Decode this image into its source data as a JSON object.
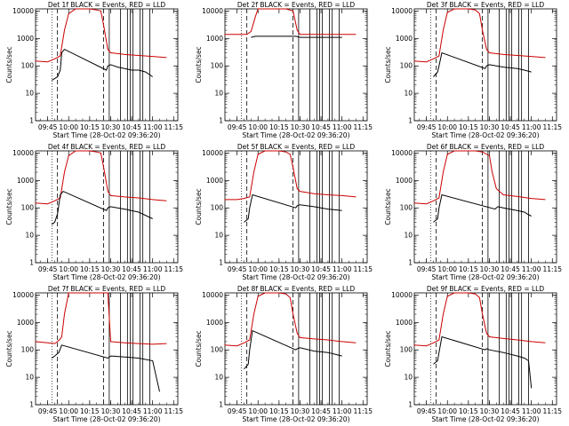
{
  "figure": {
    "xlabel": "Start Time (28-Oct-02 09:36:20)",
    "ylabel": "Counts/sec",
    "x_ticks": [
      "09:45",
      "10:00",
      "10:15",
      "10:30",
      "10:45",
      "11:00",
      "11:15"
    ],
    "y_ticks": [
      "1",
      "10",
      "100",
      "1000",
      "10000"
    ]
  },
  "colors": {
    "events": "#000000",
    "lld": "#cc0000",
    "axis": "#000000",
    "background": "#ffffff"
  },
  "chart_data": [
    {
      "type": "line",
      "title": "Det 1f BLACK = Events, RED = LLD",
      "xlabel": "Start Time (28-Oct-02 09:36:20)",
      "ylabel": "Counts/sec",
      "ylim": [
        1,
        12000
      ],
      "yscale": "log",
      "series": [
        {
          "name": "LLD",
          "color": "#cc0000",
          "x": [
            "09:36",
            "09:45",
            "09:50",
            "09:54",
            "09:57",
            "10:00",
            "10:05",
            "10:10",
            "10:15",
            "10:20",
            "10:23",
            "10:25",
            "10:28",
            "10:30",
            "10:40",
            "10:50",
            "11:00",
            "11:10"
          ],
          "values": [
            150,
            140,
            180,
            230,
            2000,
            8000,
            12000,
            12000,
            12000,
            11000,
            10000,
            3000,
            400,
            300,
            260,
            240,
            220,
            200
          ]
        },
        {
          "name": "Events",
          "color": "#000000",
          "x": [
            "09:48",
            "09:52",
            "09:54",
            "09:55",
            "09:57",
            "10:27",
            "10:28",
            "10:30",
            "10:35",
            "10:40",
            "10:45",
            "10:50",
            "10:55",
            "11:00"
          ],
          "values": [
            30,
            40,
            70,
            300,
            400,
            70,
            100,
            110,
            90,
            80,
            70,
            70,
            60,
            40
          ]
        }
      ]
    },
    {
      "type": "line",
      "title": "Det 2f BLACK = Events, RED = LLD",
      "xlabel": "Start Time (28-Oct-02 09:36:20)",
      "ylabel": "Counts/sec",
      "ylim": [
        1,
        12000
      ],
      "yscale": "log",
      "series": [
        {
          "name": "LLD",
          "color": "#cc0000",
          "x": [
            "09:36",
            "09:45",
            "09:52",
            "09:55",
            "09:58",
            "10:00",
            "10:10",
            "10:20",
            "10:25",
            "10:28",
            "10:30",
            "10:40",
            "10:50",
            "11:00",
            "11:10"
          ],
          "values": [
            1400,
            1400,
            1400,
            1800,
            6000,
            12000,
            12000,
            12000,
            10000,
            2000,
            1400,
            1400,
            1400,
            1400,
            1400
          ]
        },
        {
          "name": "Events",
          "color": "#000000",
          "x": [
            "09:55",
            "09:58",
            "10:27",
            "10:30",
            "10:40",
            "10:50",
            "11:00"
          ],
          "values": [
            1100,
            1200,
            1200,
            1100,
            1100,
            1100,
            1100
          ]
        }
      ]
    },
    {
      "type": "line",
      "title": "Det 3f BLACK = Events, RED = LLD",
      "xlabel": "Start Time (28-Oct-02 09:36:20)",
      "ylabel": "Counts/sec",
      "ylim": [
        1,
        12000
      ],
      "yscale": "log",
      "series": [
        {
          "name": "LLD",
          "color": "#cc0000",
          "x": [
            "09:36",
            "09:45",
            "09:50",
            "09:54",
            "09:57",
            "10:00",
            "10:05",
            "10:15",
            "10:20",
            "10:23",
            "10:25",
            "10:28",
            "10:30",
            "10:40",
            "10:50",
            "11:00",
            "11:10"
          ],
          "values": [
            150,
            140,
            180,
            230,
            2000,
            9000,
            12000,
            12000,
            11000,
            8000,
            2000,
            400,
            300,
            260,
            240,
            220,
            200
          ]
        },
        {
          "name": "Events",
          "color": "#000000",
          "x": [
            "09:50",
            "09:53",
            "09:54",
            "09:56",
            "10:27",
            "10:28",
            "10:30",
            "10:40",
            "10:50",
            "10:55",
            "11:00"
          ],
          "values": [
            40,
            60,
            100,
            300,
            80,
            100,
            110,
            90,
            80,
            70,
            60
          ]
        }
      ]
    },
    {
      "type": "line",
      "title": "Det 4f BLACK = Events, RED = LLD",
      "xlabel": "Start Time (28-Oct-02 09:36:20)",
      "ylabel": "Counts/sec",
      "ylim": [
        1,
        12000
      ],
      "yscale": "log",
      "series": [
        {
          "name": "LLD",
          "color": "#cc0000",
          "x": [
            "09:36",
            "09:45",
            "09:50",
            "09:54",
            "09:57",
            "10:00",
            "10:05",
            "10:10",
            "10:15",
            "10:20",
            "10:23",
            "10:25",
            "10:28",
            "10:30",
            "10:40",
            "10:50",
            "11:00",
            "11:10"
          ],
          "values": [
            150,
            140,
            180,
            230,
            2000,
            8000,
            12000,
            12000,
            12000,
            11000,
            10000,
            3000,
            400,
            280,
            250,
            230,
            200,
            180
          ]
        },
        {
          "name": "Events",
          "color": "#000000",
          "x": [
            "09:48",
            "09:50",
            "09:52",
            "09:54",
            "09:56",
            "10:27",
            "10:28",
            "10:30",
            "10:40",
            "10:50",
            "11:00"
          ],
          "values": [
            25,
            30,
            60,
            300,
            400,
            80,
            100,
            110,
            90,
            70,
            40
          ]
        }
      ]
    },
    {
      "type": "line",
      "title": "Det 5f BLACK = Events, RED = LLD",
      "xlabel": "Start Time (28-Oct-02 09:36:20)",
      "ylabel": "Counts/sec",
      "ylim": [
        1,
        12000
      ],
      "yscale": "log",
      "series": [
        {
          "name": "LLD",
          "color": "#cc0000",
          "x": [
            "09:36",
            "09:45",
            "09:50",
            "09:54",
            "09:57",
            "10:00",
            "10:05",
            "10:15",
            "10:20",
            "10:23",
            "10:25",
            "10:28",
            "10:30",
            "10:40",
            "10:50",
            "11:00",
            "11:10"
          ],
          "values": [
            200,
            200,
            220,
            250,
            2000,
            9000,
            12000,
            12000,
            11000,
            9000,
            3000,
            500,
            400,
            330,
            300,
            280,
            250
          ]
        },
        {
          "name": "Events",
          "color": "#000000",
          "x": [
            "09:50",
            "09:53",
            "09:54",
            "09:56",
            "10:27",
            "10:28",
            "10:30",
            "10:40",
            "10:50",
            "11:00"
          ],
          "values": [
            30,
            40,
            100,
            300,
            100,
            120,
            130,
            110,
            90,
            80
          ]
        }
      ]
    },
    {
      "type": "line",
      "title": "Det 6f BLACK = Events, RED = LLD",
      "xlabel": "Start Time (28-Oct-02 09:36:20)",
      "ylabel": "Counts/sec",
      "ylim": [
        1,
        12000
      ],
      "yscale": "log",
      "series": [
        {
          "name": "LLD",
          "color": "#cc0000",
          "x": [
            "09:36",
            "09:45",
            "09:50",
            "09:54",
            "09:57",
            "10:00",
            "10:05",
            "10:15",
            "10:20",
            "10:25",
            "10:30",
            "10:32",
            "10:35",
            "10:40",
            "10:50",
            "11:00",
            "11:10"
          ],
          "values": [
            150,
            140,
            180,
            230,
            2000,
            9000,
            12000,
            12000,
            12000,
            11000,
            8000,
            2000,
            500,
            300,
            260,
            220,
            200
          ]
        },
        {
          "name": "Events",
          "color": "#000000",
          "x": [
            "09:50",
            "09:53",
            "09:54",
            "09:56",
            "10:34",
            "10:36",
            "10:40",
            "10:50",
            "10:55",
            "10:57",
            "11:00"
          ],
          "values": [
            30,
            40,
            100,
            300,
            90,
            110,
            100,
            80,
            70,
            60,
            50
          ]
        }
      ]
    },
    {
      "type": "line",
      "title": "Det 7f BLACK = Events, RED = LLD",
      "xlabel": "Start Time (28-Oct-02 09:36:20)",
      "ylabel": "Counts/sec",
      "ylim": [
        1,
        12000
      ],
      "yscale": "log",
      "series": [
        {
          "name": "LLD",
          "color": "#cc0000",
          "x": [
            "09:36",
            "09:45",
            "09:50",
            "09:53",
            "09:55",
            "09:57",
            "10:00",
            "10:20",
            "10:28",
            "10:30",
            "10:40",
            "10:50",
            "11:00",
            "11:10"
          ],
          "values": [
            200,
            180,
            170,
            220,
            300,
            2000,
            12000,
            12000,
            12000,
            200,
            180,
            170,
            160,
            170
          ]
        },
        {
          "name": "Events",
          "color": "#000000",
          "x": [
            "09:48",
            "09:50",
            "09:53",
            "09:55",
            "10:28",
            "10:30",
            "10:40",
            "10:50",
            "11:00",
            "11:05"
          ],
          "values": [
            50,
            60,
            80,
            150,
            50,
            60,
            55,
            50,
            40,
            3
          ]
        }
      ]
    },
    {
      "type": "line",
      "title": "Det 8f BLACK = Events, RED = LLD",
      "xlabel": "Start Time (28-Oct-02 09:36:20)",
      "ylabel": "Counts/sec",
      "ylim": [
        1,
        12000
      ],
      "yscale": "log",
      "series": [
        {
          "name": "LLD",
          "color": "#cc0000",
          "x": [
            "09:36",
            "09:45",
            "09:50",
            "09:54",
            "09:57",
            "10:00",
            "10:05",
            "10:15",
            "10:20",
            "10:23",
            "10:25",
            "10:28",
            "10:30",
            "10:40",
            "10:50",
            "11:00",
            "11:10"
          ],
          "values": [
            150,
            140,
            180,
            230,
            2000,
            9000,
            12000,
            12000,
            11000,
            8000,
            2000,
            400,
            280,
            250,
            230,
            200,
            180
          ]
        },
        {
          "name": "Events",
          "color": "#000000",
          "x": [
            "09:50",
            "09:53",
            "09:54",
            "09:56",
            "10:27",
            "10:28",
            "10:30",
            "10:40",
            "10:50",
            "11:00"
          ],
          "values": [
            20,
            30,
            100,
            500,
            100,
            110,
            120,
            90,
            80,
            60
          ]
        }
      ]
    },
    {
      "type": "line",
      "title": "Det 9f BLACK = Events, RED = LLD",
      "xlabel": "Start Time (28-Oct-02 09:36:20)",
      "ylabel": "Counts/sec",
      "ylim": [
        1,
        12000
      ],
      "yscale": "log",
      "series": [
        {
          "name": "LLD",
          "color": "#cc0000",
          "x": [
            "09:36",
            "09:45",
            "09:50",
            "09:54",
            "09:57",
            "10:00",
            "10:05",
            "10:15",
            "10:20",
            "10:23",
            "10:25",
            "10:28",
            "10:30",
            "10:40",
            "10:50",
            "11:00",
            "11:10"
          ],
          "values": [
            150,
            140,
            180,
            230,
            2000,
            9000,
            12000,
            12000,
            11000,
            8000,
            2000,
            400,
            300,
            260,
            230,
            200,
            180
          ]
        },
        {
          "name": "Events",
          "color": "#000000",
          "x": [
            "09:50",
            "09:53",
            "09:54",
            "09:56",
            "10:27",
            "10:28",
            "10:30",
            "10:40",
            "10:50",
            "10:55",
            "10:58",
            "11:00"
          ],
          "values": [
            30,
            40,
            80,
            300,
            100,
            110,
            100,
            80,
            60,
            50,
            40,
            4
          ]
        }
      ]
    }
  ]
}
